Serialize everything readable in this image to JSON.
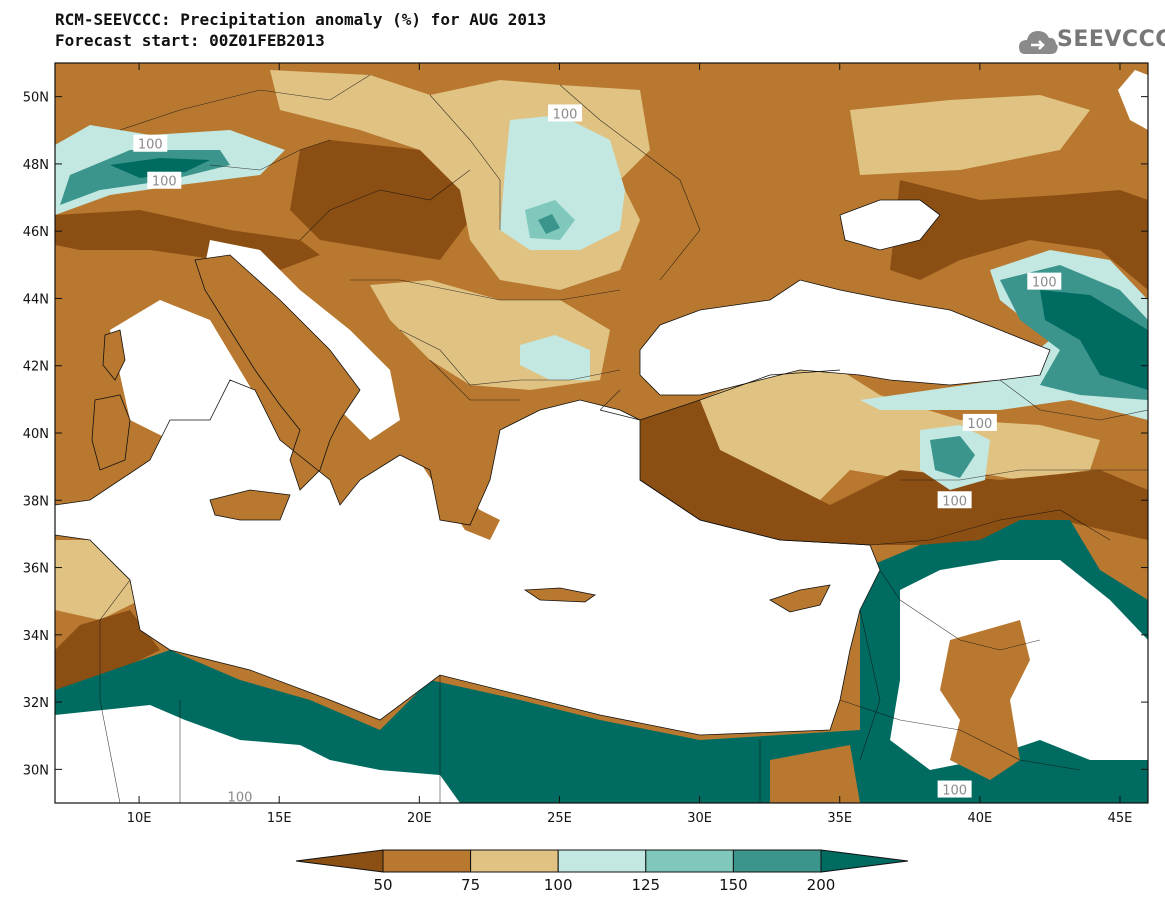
{
  "header": {
    "title": "RCM-SEEVCCC: Precipitation anomaly (%) for AUG 2013",
    "subtitle": "Forecast start: 00Z01FEB2013"
  },
  "logo": {
    "text": "SEEVCCC",
    "icon": "cloud-icon"
  },
  "map": {
    "lon_range": [
      7,
      46
    ],
    "lat_range": [
      29,
      51
    ],
    "lon_ticks": [
      {
        "value": 10,
        "label": "10E"
      },
      {
        "value": 15,
        "label": "15E"
      },
      {
        "value": 20,
        "label": "20E"
      },
      {
        "value": 25,
        "label": "25E"
      },
      {
        "value": 30,
        "label": "30E"
      },
      {
        "value": 35,
        "label": "35E"
      },
      {
        "value": 40,
        "label": "40E"
      },
      {
        "value": 45,
        "label": "45E"
      }
    ],
    "lat_ticks": [
      {
        "value": 30,
        "label": "30N"
      },
      {
        "value": 32,
        "label": "32N"
      },
      {
        "value": 34,
        "label": "34N"
      },
      {
        "value": 36,
        "label": "36N"
      },
      {
        "value": 38,
        "label": "38N"
      },
      {
        "value": 40,
        "label": "40N"
      },
      {
        "value": 42,
        "label": "42N"
      },
      {
        "value": 44,
        "label": "44N"
      },
      {
        "value": 46,
        "label": "46N"
      },
      {
        "value": 48,
        "label": "48N"
      },
      {
        "value": 50,
        "label": "50N"
      }
    ],
    "contour_labels": [
      {
        "lon": 25.2,
        "lat": 49.5,
        "text": "100"
      },
      {
        "lon": 10.4,
        "lat": 48.6,
        "text": "100"
      },
      {
        "lon": 10.9,
        "lat": 47.5,
        "text": "100"
      },
      {
        "lon": 42.3,
        "lat": 44.5,
        "text": "100"
      },
      {
        "lon": 40.0,
        "lat": 40.3,
        "text": "100"
      },
      {
        "lon": 39.1,
        "lat": 38.0,
        "text": "100"
      },
      {
        "lon": 13.6,
        "lat": 29.2,
        "text": "100"
      },
      {
        "lon": 39.1,
        "lat": 29.4,
        "text": "100"
      }
    ]
  },
  "colorbar": {
    "colors": [
      "#8b4f14",
      "#b8782f",
      "#e0c283",
      "#c3e7e1",
      "#7fc8bb",
      "#3b958c",
      "#006b60"
    ],
    "labels": [
      "50",
      "75",
      "100",
      "125",
      "150",
      "200"
    ]
  },
  "palette": {
    "below50": "#8b4f14",
    "p50_75": "#b8782f",
    "p75_100": "#e0c283",
    "p100_125": "#c3e7e1",
    "p125_150": "#7fc8bb",
    "p150_200": "#3b958c",
    "above200": "#006b60",
    "sea": "#ffffff"
  }
}
